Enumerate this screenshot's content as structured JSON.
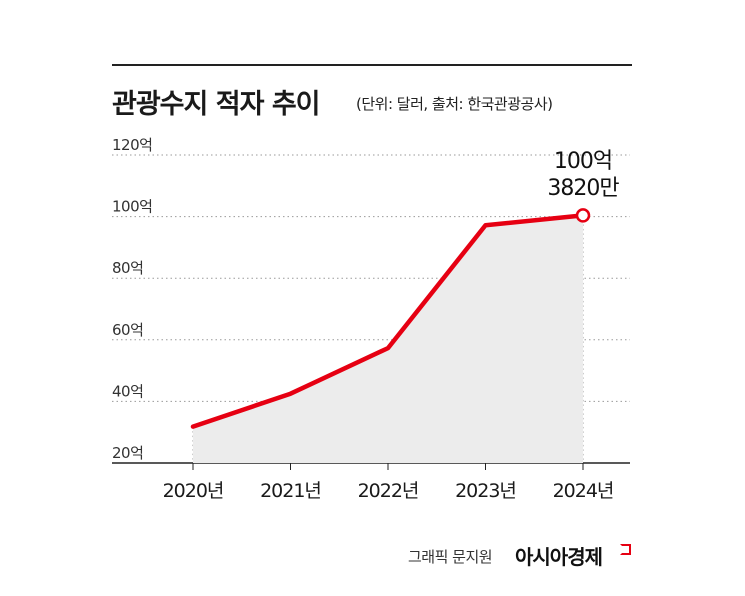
{
  "title": "관광수지 적자 추이",
  "subtitle": "(단위: 달러, 출처: 한국관광공사)",
  "credit": "그래픽 문지원",
  "brand": "아시아경제",
  "chart_data": {
    "type": "area",
    "categories": [
      "2020년",
      "2021년",
      "2022년",
      "2023년",
      "2024년"
    ],
    "values": [
      31.8,
      42.5,
      57.3,
      97.2,
      100.382
    ],
    "yticks": [
      20,
      40,
      60,
      80,
      100,
      120
    ],
    "ytick_labels": [
      "20억",
      "40억",
      "60억",
      "80억",
      "100억",
      "120억"
    ],
    "ylim": [
      20,
      120
    ],
    "grid": true,
    "annotation": {
      "line1": "100억",
      "line2": "3820만"
    },
    "colors": {
      "line": "#e60012",
      "fill": "#ececec",
      "grid": "#9a9a9a"
    }
  }
}
